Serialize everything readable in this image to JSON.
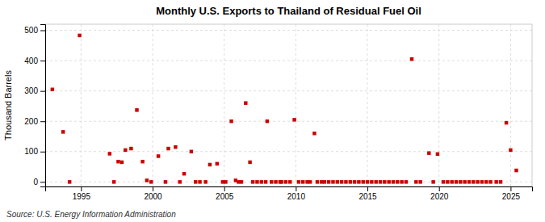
{
  "chart_data": {
    "type": "scatter",
    "title": "Monthly U.S. Exports to Thailand of Residual Fuel Oil",
    "ylabel": "Thousand Barrels",
    "annotations": [
      "Source: U.S. Energy Information Administration"
    ],
    "color": "#cc0000",
    "marker": "square",
    "grid": true,
    "xlim": [
      1992.5,
      2026.5
    ],
    "ylim": [
      -15,
      520
    ],
    "xticks": [
      1995,
      2000,
      2005,
      2010,
      2015,
      2020,
      2025
    ],
    "yticks": [
      0,
      100,
      200,
      300,
      400,
      500
    ],
    "x": [
      1993.0,
      1993.75,
      1994.9,
      1997.0,
      1997.6,
      1997.85,
      1998.1,
      1998.5,
      1998.9,
      1999.3,
      1999.6,
      2000.4,
      2001.1,
      2001.6,
      2002.2,
      2002.7,
      2004.0,
      2004.5,
      2005.5,
      2006.5,
      2006.8,
      2008.0,
      2009.9,
      2011.3,
      2018.1,
      2019.3,
      2019.9,
      2024.7,
      2025.0,
      2025.4,
      1994.2,
      1997.3,
      1999.9,
      2000.9,
      2001.9,
      2003.0,
      2003.3,
      2003.7,
      2004.9,
      2005.1,
      2005.8,
      2006.0,
      2006.2,
      2007.0,
      2007.3,
      2007.6,
      2007.9,
      2008.3,
      2008.6,
      2008.9,
      2009.0,
      2009.3,
      2009.6,
      2010.2,
      2010.5,
      2010.8,
      2011.0,
      2011.5,
      2011.8,
      2012.0,
      2012.3,
      2012.6,
      2012.9,
      2013.2,
      2013.5,
      2013.8,
      2014.1,
      2014.4,
      2014.7,
      2015.0,
      2015.3,
      2015.6,
      2015.9,
      2016.2,
      2016.5,
      2016.8,
      2017.1,
      2017.4,
      2017.7,
      2018.4,
      2018.7,
      2019.6,
      2020.3,
      2020.6,
      2020.9,
      2021.2,
      2021.5,
      2021.8,
      2022.1,
      2022.4,
      2022.7,
      2023.0,
      2023.3,
      2023.6,
      2024.0,
      2024.3
    ],
    "values": [
      305,
      165,
      483,
      93,
      67,
      65,
      105,
      110,
      237,
      67,
      5,
      85,
      110,
      115,
      27,
      100,
      57,
      60,
      200,
      260,
      65,
      200,
      205,
      160,
      405,
      95,
      92,
      195,
      105,
      38,
      0,
      0,
      0,
      0,
      0,
      0,
      0,
      0,
      0,
      0,
      5,
      0,
      0,
      0,
      0,
      0,
      0,
      0,
      0,
      0,
      0,
      0,
      0,
      0,
      0,
      0,
      0,
      0,
      0,
      0,
      0,
      0,
      0,
      0,
      0,
      0,
      0,
      0,
      0,
      0,
      0,
      0,
      0,
      0,
      0,
      0,
      0,
      0,
      0,
      0,
      0,
      0,
      0,
      0,
      0,
      0,
      0,
      0,
      0,
      0,
      0,
      0,
      0,
      0,
      0,
      0
    ]
  }
}
